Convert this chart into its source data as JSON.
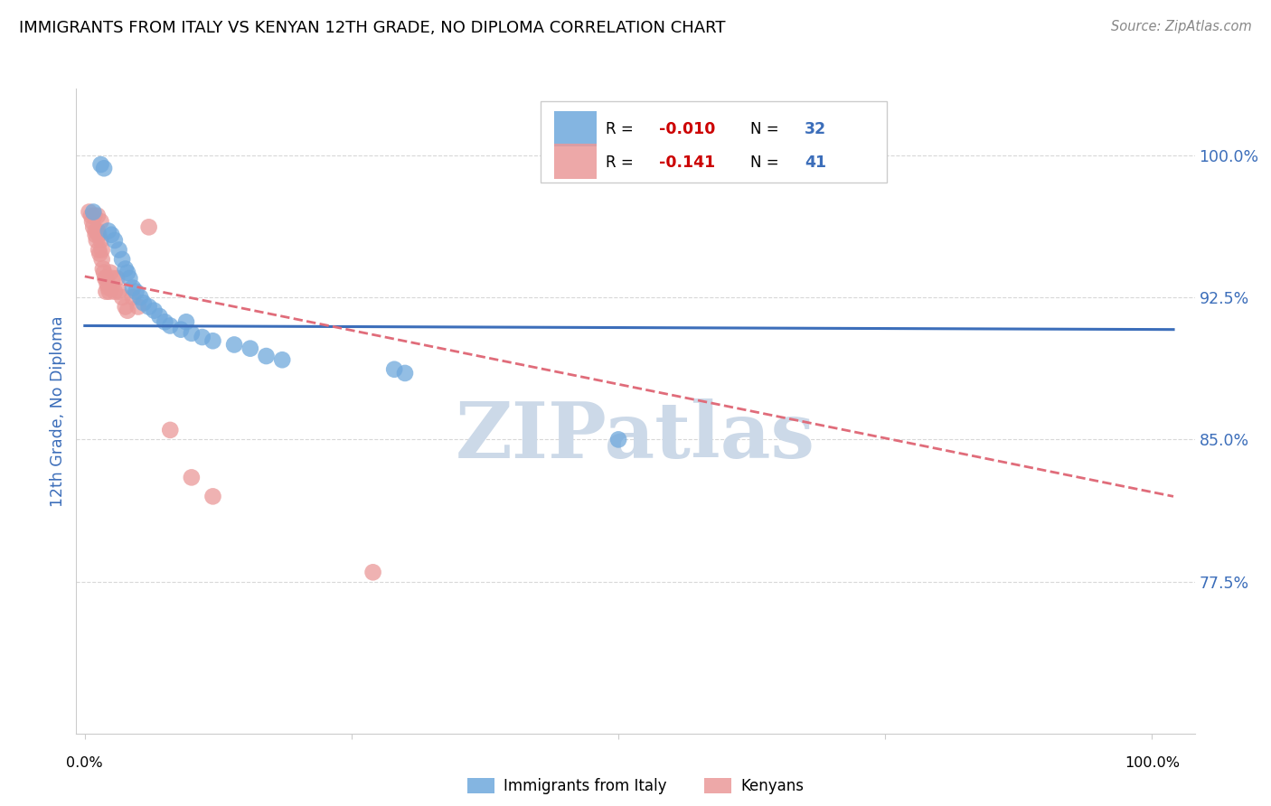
{
  "title": "IMMIGRANTS FROM ITALY VS KENYAN 12TH GRADE, NO DIPLOMA CORRELATION CHART",
  "source": "Source: ZipAtlas.com",
  "ylabel": "12th Grade, No Diploma",
  "legend_label_blue": "Immigrants from Italy",
  "legend_label_pink": "Kenyans",
  "r_blue": "-0.010",
  "n_blue": "32",
  "r_pink": "-0.141",
  "n_pink": "41",
  "ytick_labels": [
    "100.0%",
    "92.5%",
    "85.0%",
    "77.5%"
  ],
  "ytick_values": [
    1.0,
    0.925,
    0.85,
    0.775
  ],
  "ymin": 0.695,
  "ymax": 1.035,
  "xmin": -0.008,
  "xmax": 1.04,
  "blue_color": "#6fa8dc",
  "pink_color": "#ea9999",
  "trendline_blue_color": "#3c6eba",
  "trendline_pink_color": "#e06c7a",
  "watermark_color": "#ccd9e8",
  "grid_color": "#d8d8d8",
  "blue_scatter_x": [
    0.008,
    0.015,
    0.018,
    0.022,
    0.025,
    0.028,
    0.032,
    0.035,
    0.038,
    0.04,
    0.042,
    0.045,
    0.048,
    0.052,
    0.055,
    0.06,
    0.065,
    0.07,
    0.075,
    0.08,
    0.09,
    0.095,
    0.1,
    0.11,
    0.12,
    0.14,
    0.155,
    0.17,
    0.185,
    0.29,
    0.3,
    0.5
  ],
  "blue_scatter_y": [
    0.97,
    0.995,
    0.993,
    0.96,
    0.958,
    0.955,
    0.95,
    0.945,
    0.94,
    0.938,
    0.935,
    0.93,
    0.928,
    0.925,
    0.922,
    0.92,
    0.918,
    0.915,
    0.912,
    0.91,
    0.908,
    0.912,
    0.906,
    0.904,
    0.902,
    0.9,
    0.898,
    0.894,
    0.892,
    0.887,
    0.885,
    0.85
  ],
  "pink_scatter_x": [
    0.004,
    0.006,
    0.007,
    0.008,
    0.009,
    0.01,
    0.01,
    0.011,
    0.012,
    0.012,
    0.013,
    0.013,
    0.014,
    0.015,
    0.015,
    0.016,
    0.016,
    0.017,
    0.018,
    0.019,
    0.02,
    0.02,
    0.021,
    0.022,
    0.023,
    0.024,
    0.025,
    0.026,
    0.028,
    0.03,
    0.032,
    0.035,
    0.038,
    0.04,
    0.045,
    0.05,
    0.06,
    0.08,
    0.1,
    0.12,
    0.27
  ],
  "pink_scatter_y": [
    0.97,
    0.968,
    0.965,
    0.962,
    0.968,
    0.96,
    0.958,
    0.955,
    0.968,
    0.96,
    0.958,
    0.95,
    0.948,
    0.965,
    0.955,
    0.95,
    0.945,
    0.94,
    0.938,
    0.935,
    0.935,
    0.928,
    0.932,
    0.93,
    0.928,
    0.938,
    0.93,
    0.935,
    0.928,
    0.935,
    0.928,
    0.925,
    0.92,
    0.918,
    0.925,
    0.92,
    0.962,
    0.855,
    0.83,
    0.82,
    0.78
  ],
  "blue_trend_x0": 0.0,
  "blue_trend_x1": 1.02,
  "blue_trend_y0": 0.91,
  "blue_trend_y1": 0.908,
  "pink_trend_x0": 0.0,
  "pink_trend_x1": 1.02,
  "pink_trend_y0": 0.936,
  "pink_trend_y1": 0.82
}
